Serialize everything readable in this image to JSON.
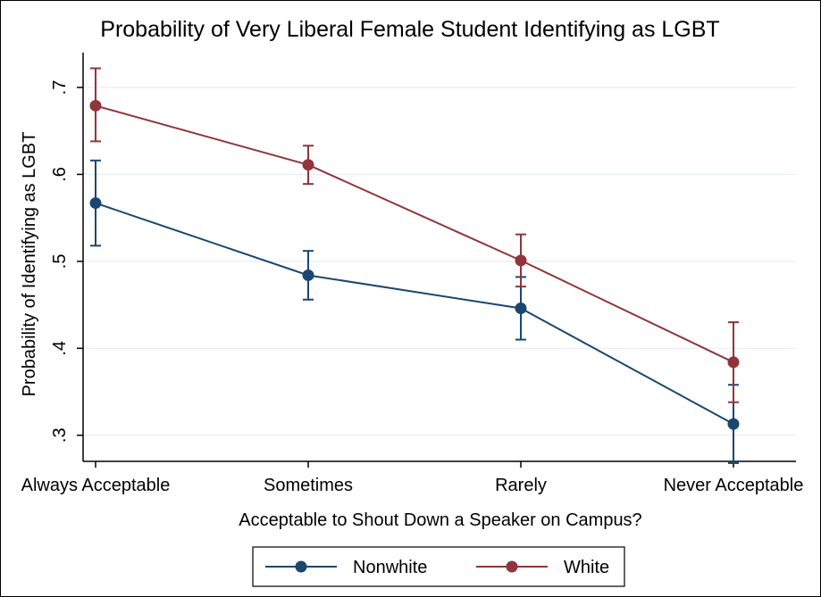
{
  "chart_data": {
    "type": "line",
    "title": "Probability of Very Liberal Female Student Identifying as LGBT",
    "xlabel": "Acceptable to Shout Down a Speaker on Campus?",
    "ylabel": "Probability of Identifying as LGBT",
    "categories": [
      "Always Acceptable",
      "Sometimes",
      "Rarely",
      "Never Acceptable"
    ],
    "ylim": [
      0.27,
      0.74
    ],
    "yticks": [
      0.3,
      0.4,
      0.5,
      0.6,
      0.7
    ],
    "ytick_labels": [
      ".3",
      ".4",
      ".5",
      ".6",
      ".7"
    ],
    "grid": true,
    "legend_position": "bottom",
    "error_bars": true,
    "series": [
      {
        "name": "Nonwhite",
        "color": "#1a476f",
        "values": [
          0.567,
          0.484,
          0.446,
          0.313
        ],
        "ci_low": [
          0.518,
          0.456,
          0.41,
          0.268
        ],
        "ci_high": [
          0.616,
          0.512,
          0.482,
          0.358
        ]
      },
      {
        "name": "White",
        "color": "#90353b",
        "values": [
          0.679,
          0.611,
          0.501,
          0.384
        ],
        "ci_low": [
          0.638,
          0.589,
          0.471,
          0.338
        ],
        "ci_high": [
          0.722,
          0.633,
          0.531,
          0.43
        ]
      }
    ]
  }
}
